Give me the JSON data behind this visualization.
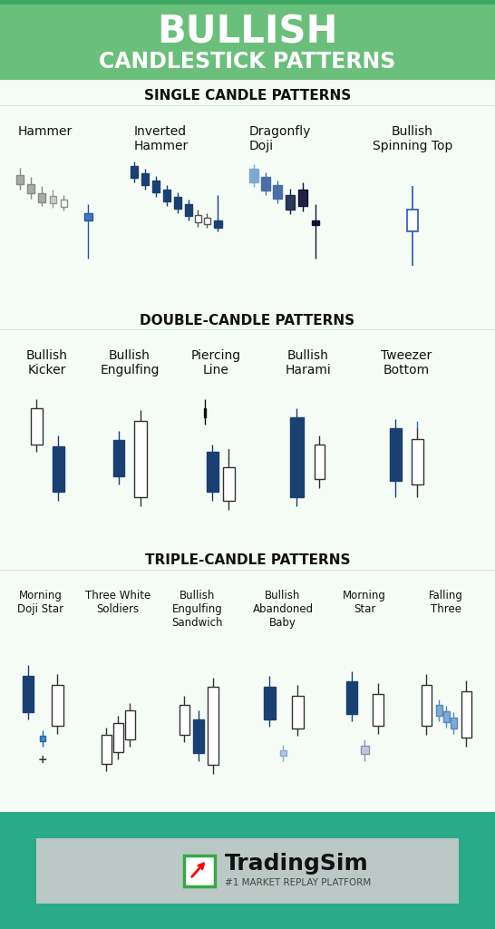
{
  "title_line1": "BULLISH",
  "title_line2": "CANDLESTICK PATTERNS",
  "header_green": "#6abf7b",
  "header_dark_green": "#3da864",
  "section_bg": "#f5fbf5",
  "white_bg": "#ffffff",
  "section1_title": "SINGLE CANDLE PATTERNS",
  "section2_title": "DOUBLE-CANDLE PATTERNS",
  "section3_title": "TRIPLE-CANDLE PATTERNS",
  "gray_dark": "#888888",
  "gray_light": "#aaaaaa",
  "dark_blue": "#1a3f72",
  "mid_blue": "#4a6fa5",
  "light_blue": "#7fa8d4",
  "pale_blue": "#b8d0e8",
  "white_candle": "#ffffff",
  "black": "#111111",
  "teal_footer": "#2aaa88",
  "footer_band": "#d8d8d8",
  "section_divider": "#d0ead0"
}
